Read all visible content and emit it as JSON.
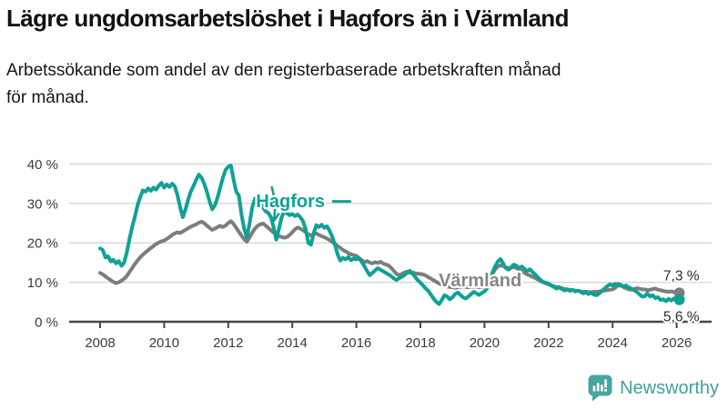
{
  "header": {
    "title": "Lägre ungdomsarbetslöshet i Hagfors än i Värmland",
    "subtitle_line1": "Arbetssökande som andel av den registerbaserade arbetskraften månad",
    "subtitle_line2": "för månad."
  },
  "footer": {
    "brand": "Newsworthy"
  },
  "chart_data": {
    "type": "line",
    "title": "",
    "xlabel": "",
    "ylabel": "",
    "x_start": 2008.0,
    "x_step_months": 1,
    "ylim": [
      0,
      42
    ],
    "grid": "horizontal",
    "colors": {
      "hagfors": "#0fa195",
      "varmland": "#7d7d7d",
      "grid": "#d9d9d9",
      "axis": "#474747",
      "axis_text": "#3c3c3c",
      "label_text": "#2d2d2d",
      "varmland_label": "#868686"
    },
    "y_ticks": [
      {
        "v": 0,
        "label": "0 %"
      },
      {
        "v": 10,
        "label": "10 %"
      },
      {
        "v": 20,
        "label": "20 %"
      },
      {
        "v": 30,
        "label": "30 %"
      },
      {
        "v": 40,
        "label": "40 %"
      }
    ],
    "x_ticks": [
      {
        "v": 2008,
        "label": "2008"
      },
      {
        "v": 2010,
        "label": "2010"
      },
      {
        "v": 2012,
        "label": "2012"
      },
      {
        "v": 2014,
        "label": "2014"
      },
      {
        "v": 2016,
        "label": "2016"
      },
      {
        "v": 2018,
        "label": "2018"
      },
      {
        "v": 2020,
        "label": "2020"
      },
      {
        "v": 2022,
        "label": "2022"
      },
      {
        "v": 2024,
        "label": "2024"
      },
      {
        "v": 2026,
        "label": "2026"
      }
    ],
    "series": [
      {
        "name": "Värmland",
        "color": "#7d7d7d",
        "latest_label": "7,3 %",
        "latest_value": 7.3,
        "label_dy": -14,
        "values": [
          12.4,
          12.0,
          11.5,
          11.0,
          10.5,
          10.1,
          9.8,
          10.0,
          10.4,
          10.9,
          11.6,
          12.6,
          13.6,
          14.6,
          15.5,
          16.3,
          17.0,
          17.6,
          18.1,
          18.7,
          19.2,
          19.7,
          20.1,
          20.4,
          20.6,
          21.0,
          21.5,
          22.0,
          22.4,
          22.7,
          22.5,
          22.9,
          23.3,
          23.7,
          24.1,
          24.4,
          24.7,
          25.1,
          25.4,
          25.0,
          24.4,
          23.8,
          23.3,
          23.6,
          24.0,
          24.3,
          24.0,
          24.4,
          25.0,
          25.5,
          24.8,
          23.8,
          22.8,
          21.8,
          20.9,
          20.3,
          21.4,
          22.6,
          23.6,
          24.3,
          24.7,
          24.9,
          24.4,
          23.8,
          23.2,
          22.6,
          22.0,
          21.7,
          21.5,
          21.3,
          21.5,
          22.0,
          22.7,
          23.4,
          23.9,
          23.6,
          23.2,
          22.7,
          22.2,
          21.9,
          22.2,
          22.4,
          22.0,
          21.7,
          21.4,
          21.1,
          20.7,
          20.2,
          19.7,
          19.2,
          18.7,
          18.2,
          17.8,
          17.4,
          17.1,
          16.9,
          16.7,
          16.2,
          15.6,
          15.1,
          15.4,
          15.0,
          14.8,
          15.1,
          14.9,
          15.2,
          14.8,
          14.5,
          14.3,
          13.7,
          12.9,
          12.2,
          11.8,
          12.1,
          12.5,
          12.7,
          12.4,
          12.5,
          12.3,
          12.2,
          12.1,
          12.0,
          11.7,
          11.3,
          10.9,
          10.5,
          10.1,
          9.7,
          9.4,
          9.1,
          8.9,
          8.8,
          8.7,
          8.6,
          8.7,
          8.8,
          8.9,
          8.8,
          8.7,
          8.8,
          8.9,
          8.8,
          8.7,
          8.8,
          9.0,
          9.5,
          10.8,
          12.2,
          13.3,
          14.0,
          14.3,
          14.1,
          13.8,
          13.6,
          13.7,
          13.9,
          13.6,
          13.2,
          12.8,
          12.4,
          12.0,
          11.7,
          11.4,
          11.1,
          10.7,
          10.3,
          10.0,
          9.7,
          9.5,
          9.2,
          9.0,
          8.8,
          8.6,
          8.5,
          8.3,
          8.2,
          8.1,
          8.0,
          7.9,
          7.8,
          7.7,
          7.6,
          7.6,
          7.5,
          7.5,
          7.6,
          7.6,
          7.7,
          7.8,
          7.9,
          8.0,
          8.1,
          8.2,
          8.6,
          9.6,
          9.2,
          8.8,
          8.5,
          8.2,
          8.1,
          8.3,
          8.5,
          8.4,
          8.2,
          8.2,
          8.0,
          8.1,
          8.3,
          8.4,
          8.1,
          8.0,
          7.8,
          7.7,
          7.6,
          7.7,
          7.5,
          7.4,
          7.3
        ]
      },
      {
        "name": "Hagfors",
        "color": "#0fa195",
        "latest_label": "5,6 %",
        "latest_value": 5.6,
        "label_dy": 24,
        "values": [
          18.6,
          18.2,
          16.3,
          16.6,
          15.3,
          15.7,
          14.8,
          15.4,
          14.2,
          15.0,
          17.5,
          21.0,
          24.0,
          26.5,
          29.5,
          31.5,
          33.3,
          33.0,
          33.8,
          33.2,
          34.0,
          33.5,
          34.5,
          35.2,
          34.0,
          34.8,
          34.2,
          35.0,
          34.3,
          32.0,
          29.0,
          26.5,
          28.5,
          31.0,
          33.0,
          34.5,
          36.0,
          37.3,
          36.5,
          35.0,
          33.0,
          30.5,
          28.5,
          29.5,
          31.5,
          34.0,
          36.5,
          38.5,
          39.3,
          39.6,
          36.0,
          33.0,
          32.0,
          27.0,
          23.5,
          21.4,
          25.0,
          29.0,
          31.2,
          30.5,
          30.0,
          29.0,
          28.0,
          27.6,
          26.5,
          24.0,
          20.8,
          23.5,
          26.5,
          28.0,
          27.5,
          27.0,
          27.3,
          26.8,
          27.2,
          26.5,
          25.5,
          23.5,
          20.0,
          19.5,
          22.5,
          24.5,
          24.0,
          24.6,
          23.8,
          24.2,
          23.0,
          21.5,
          19.5,
          17.0,
          15.5,
          16.2,
          15.8,
          16.4,
          15.6,
          16.0,
          15.8,
          16.1,
          15.2,
          14.1,
          12.9,
          11.8,
          12.4,
          13.0,
          13.6,
          13.2,
          12.8,
          12.4,
          12.0,
          11.6,
          11.0,
          10.6,
          11.0,
          11.4,
          11.8,
          12.4,
          12.9,
          12.2,
          11.4,
          10.5,
          9.9,
          9.2,
          8.4,
          7.8,
          6.8,
          5.8,
          5.0,
          4.5,
          5.5,
          6.7,
          6.4,
          5.7,
          6.2,
          7.0,
          7.4,
          6.8,
          6.2,
          5.9,
          6.4,
          7.0,
          7.6,
          7.2,
          6.8,
          7.3,
          7.7,
          8.5,
          10.5,
          12.5,
          14.0,
          15.3,
          15.9,
          14.8,
          13.6,
          13.2,
          13.8,
          14.5,
          14.2,
          13.6,
          14.0,
          13.4,
          12.8,
          13.3,
          12.6,
          12.0,
          11.3,
          10.6,
          10.1,
          9.9,
          9.7,
          9.2,
          8.8,
          8.4,
          8.8,
          8.3,
          7.9,
          8.2,
          7.8,
          8.1,
          7.7,
          7.9,
          7.6,
          7.2,
          7.5,
          7.0,
          7.3,
          6.9,
          6.7,
          7.2,
          7.8,
          8.4,
          9.0,
          9.5,
          9.2,
          9.6,
          9.1,
          9.4,
          8.9,
          9.2,
          8.7,
          8.4,
          8.0,
          7.6,
          7.0,
          6.4,
          6.4,
          7.2,
          6.4,
          6.7,
          6.0,
          6.2,
          5.5,
          5.7,
          5.2,
          5.8,
          5.4,
          5.9,
          6.0,
          5.6
        ]
      }
    ],
    "annotations": [
      {
        "text": "Hagfors",
        "x": 2012.87,
        "y": 29.0,
        "color": "#0fa195",
        "arrow": {
          "x": 2013.43,
          "tip_y": 25.6,
          "from_y": 34.1
        },
        "dash": {
          "x1": 2015.28,
          "x2": 2015.8,
          "y": 30.5
        }
      },
      {
        "text": "Värmland",
        "x": 2018.57,
        "y": 9.0,
        "color": "#868686"
      }
    ]
  }
}
